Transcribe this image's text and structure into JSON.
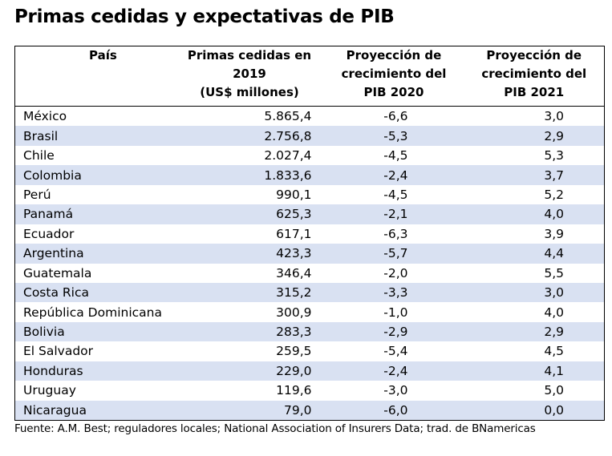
{
  "title": "Primas cedidas y expectativas de PIB",
  "headers": {
    "country": "País",
    "premiums": [
      "Primas cedidas en",
      "2019",
      "(US$ millones)"
    ],
    "gdp2020": [
      "Proyección de",
      "crecimiento del",
      "PIB 2020"
    ],
    "gdp2021": [
      "Proyección de",
      "crecimiento del",
      "PIB 2021"
    ]
  },
  "rows": [
    {
      "country": "México",
      "premiums": "5.865,4",
      "gdp2020": "-6,6",
      "gdp2021": "3,0"
    },
    {
      "country": "Brasil",
      "premiums": "2.756,8",
      "gdp2020": "-5,3",
      "gdp2021": "2,9"
    },
    {
      "country": "Chile",
      "premiums": "2.027,4",
      "gdp2020": "-4,5",
      "gdp2021": "5,3"
    },
    {
      "country": "Colombia",
      "premiums": "1.833,6",
      "gdp2020": "-2,4",
      "gdp2021": "3,7"
    },
    {
      "country": "Perú",
      "premiums": "990,1",
      "gdp2020": "-4,5",
      "gdp2021": "5,2"
    },
    {
      "country": "Panamá",
      "premiums": "625,3",
      "gdp2020": "-2,1",
      "gdp2021": "4,0"
    },
    {
      "country": "Ecuador",
      "premiums": "617,1",
      "gdp2020": "-6,3",
      "gdp2021": "3,9"
    },
    {
      "country": "Argentina",
      "premiums": "423,3",
      "gdp2020": "-5,7",
      "gdp2021": "4,4"
    },
    {
      "country": "Guatemala",
      "premiums": "346,4",
      "gdp2020": "-2,0",
      "gdp2021": "5,5"
    },
    {
      "country": "Costa Rica",
      "premiums": "315,2",
      "gdp2020": "-3,3",
      "gdp2021": "3,0"
    },
    {
      "country": "República Dominicana",
      "premiums": "300,9",
      "gdp2020": "-1,0",
      "gdp2021": "4,0"
    },
    {
      "country": "Bolivia",
      "premiums": "283,3",
      "gdp2020": "-2,9",
      "gdp2021": "2,9"
    },
    {
      "country": "El Salvador",
      "premiums": "259,5",
      "gdp2020": "-5,4",
      "gdp2021": "4,5"
    },
    {
      "country": "Honduras",
      "premiums": "229,0",
      "gdp2020": "-2,4",
      "gdp2021": "4,1"
    },
    {
      "country": "Uruguay",
      "premiums": "119,6",
      "gdp2020": "-3,0",
      "gdp2021": "5,0"
    },
    {
      "country": "Nicaragua",
      "premiums": "79,0",
      "gdp2020": "-6,0",
      "gdp2021": "0,0"
    }
  ],
  "source": "Fuente: A.M. Best; reguladores locales; National Association of Insurers Data; trad. de BNamericas",
  "colors": {
    "stripe": "#d9e1f2",
    "border": "#000000",
    "text": "#000000"
  }
}
